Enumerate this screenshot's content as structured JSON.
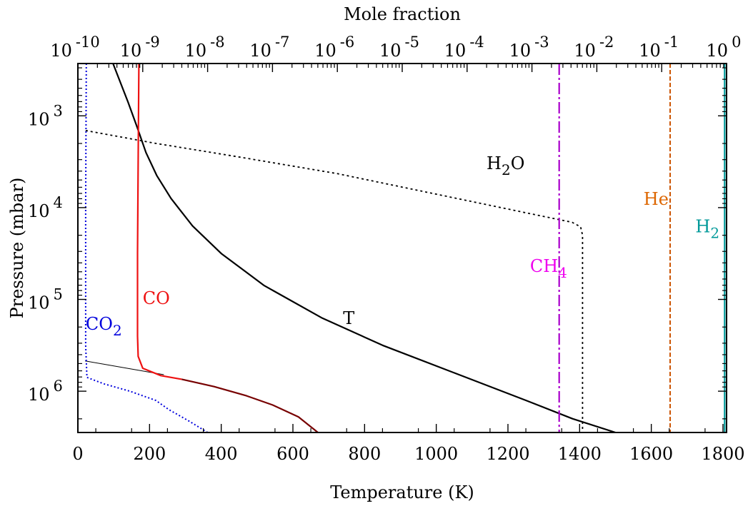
{
  "chart_data": {
    "type": "line",
    "xlabel_bottom": "Temperature (K)",
    "xlabel_top": "Mole fraction",
    "ylabel": "Pressure (mbar)",
    "x_bottom": {
      "scale": "linear",
      "lim": [
        0,
        1810
      ],
      "ticks": [
        0,
        200,
        400,
        600,
        800,
        1000,
        1200,
        1400,
        1600,
        1800
      ],
      "tick_labels": [
        "0",
        "200",
        "400",
        "600",
        "800",
        "1000",
        "1200",
        "1400",
        "1600",
        "1800"
      ]
    },
    "x_top": {
      "scale": "log",
      "lim_exp": [
        -10,
        0
      ],
      "tick_exps": [
        -10,
        -9,
        -8,
        -7,
        -6,
        -5,
        -4,
        -3,
        -2,
        -1,
        0
      ],
      "tick_exp_labels": [
        "-10",
        "-9",
        "-8",
        "-7",
        "-6",
        "-5",
        "-4",
        "-3",
        "-2",
        "-1",
        "0"
      ],
      "tick_base": "10"
    },
    "y": {
      "scale": "log",
      "inverted": true,
      "lim_exp": [
        2.43,
        6.45
      ],
      "tick_exps": [
        3,
        4,
        5,
        6
      ],
      "tick_exp_labels": [
        "3",
        "4",
        "5",
        "6"
      ],
      "tick_base": "10"
    },
    "grid": false,
    "legend": "none",
    "series": [
      {
        "name": "T",
        "axis": "temperature",
        "color": "#000000",
        "dash": "",
        "width": 2.2,
        "label_parts": [
          {
            "t": "T"
          }
        ],
        "label_at": [
          740,
          5.27
        ],
        "label_color": "#000000",
        "points": [
          [
            98,
            2.43
          ],
          [
            115,
            2.6
          ],
          [
            140,
            2.85
          ],
          [
            165,
            3.12
          ],
          [
            190,
            3.4
          ],
          [
            220,
            3.65
          ],
          [
            260,
            3.9
          ],
          [
            320,
            4.2
          ],
          [
            400,
            4.5
          ],
          [
            520,
            4.85
          ],
          [
            680,
            5.2
          ],
          [
            850,
            5.5
          ],
          [
            1050,
            5.8
          ],
          [
            1250,
            6.1
          ],
          [
            1380,
            6.3
          ],
          [
            1500,
            6.45
          ]
        ]
      },
      {
        "name": "T extension",
        "axis": "temperature",
        "color": "#000000",
        "dash": "",
        "width": 1.0,
        "points": [
          [
            20,
            5.67
          ],
          [
            240,
            5.82
          ]
        ]
      },
      {
        "name": "H2O",
        "axis": "mole_fraction",
        "color": "#000000",
        "dash": "3,4",
        "width": 1.8,
        "label_parts": [
          {
            "t": "H"
          },
          {
            "t": "2",
            "sub": true
          },
          {
            "t": "O"
          }
        ],
        "label_at": [
          -3.7,
          3.58
        ],
        "label_color": "#000000",
        "points": [
          [
            -9.88,
            3.16
          ],
          [
            -8.8,
            3.3
          ],
          [
            -7.5,
            3.45
          ],
          [
            -6.0,
            3.63
          ],
          [
            -4.5,
            3.85
          ],
          [
            -3.0,
            4.07
          ],
          [
            -2.38,
            4.16
          ],
          [
            -2.25,
            4.21
          ],
          [
            -2.22,
            4.3
          ],
          [
            -2.22,
            6.45
          ]
        ]
      },
      {
        "name": "CH4",
        "axis": "mole_fraction",
        "color": "#aa00cc",
        "dash": "16,4,3,4",
        "width": 2.2,
        "label_parts": [
          {
            "t": "CH"
          },
          {
            "t": "4",
            "sub": true
          }
        ],
        "label_at": [
          -3.03,
          4.7
        ],
        "label_color": "#ee00ee",
        "points": [
          [
            -2.58,
            2.43
          ],
          [
            -2.58,
            6.45
          ]
        ]
      },
      {
        "name": "He",
        "axis": "mole_fraction",
        "color": "#cc5500",
        "dash": "6,3",
        "width": 2.0,
        "label_parts": [
          {
            "t": "He"
          }
        ],
        "label_at": [
          -1.28,
          3.97
        ],
        "label_color": "#dd6600",
        "points": [
          [
            -0.87,
            2.43
          ],
          [
            -0.87,
            6.45
          ]
        ]
      },
      {
        "name": "H2",
        "axis": "mole_fraction",
        "color": "#009999",
        "dash": "",
        "width": 2.2,
        "label_parts": [
          {
            "t": "H"
          },
          {
            "t": "2",
            "sub": true
          }
        ],
        "label_at": [
          -0.48,
          4.27
        ],
        "label_color": "#009999",
        "points": [
          [
            -0.03,
            2.43
          ],
          [
            -0.03,
            6.45
          ]
        ]
      },
      {
        "name": "CO",
        "axis": "mole_fraction",
        "color": "#ee1111",
        "dash": "",
        "width": 2.2,
        "label_parts": [
          {
            "t": "CO"
          }
        ],
        "label_at": [
          -9.0,
          5.05
        ],
        "label_color": "#ee1111",
        "points": [
          [
            -9.06,
            2.43
          ],
          [
            -9.07,
            3.5
          ],
          [
            -9.08,
            4.5
          ],
          [
            -9.08,
            5.4
          ],
          [
            -9.07,
            5.62
          ],
          [
            -9.0,
            5.75
          ],
          [
            -8.72,
            5.83
          ],
          [
            -8.4,
            5.87
          ]
        ]
      },
      {
        "name": "CO dark",
        "axis": "mole_fraction",
        "color": "#770000",
        "dash": "",
        "width": 2.2,
        "points": [
          [
            -8.4,
            5.87
          ],
          [
            -7.9,
            5.95
          ],
          [
            -7.4,
            6.05
          ],
          [
            -7.0,
            6.15
          ],
          [
            -6.6,
            6.28
          ],
          [
            -6.3,
            6.45
          ]
        ]
      },
      {
        "name": "CO2",
        "axis": "mole_fraction",
        "color": "#0000dd",
        "dash": "2,3",
        "width": 2.0,
        "label_parts": [
          {
            "t": "CO"
          },
          {
            "t": "2",
            "sub": true
          }
        ],
        "label_at": [
          -9.88,
          5.33
        ],
        "label_color": "#0000dd",
        "points": [
          [
            -9.87,
            2.43
          ],
          [
            -9.88,
            4.0
          ],
          [
            -9.88,
            5.5
          ],
          [
            -9.86,
            5.85
          ],
          [
            -9.6,
            5.92
          ],
          [
            -9.2,
            6.0
          ],
          [
            -8.8,
            6.1
          ],
          [
            -8.6,
            6.2
          ],
          [
            -8.3,
            6.32
          ],
          [
            -8.0,
            6.45
          ]
        ]
      }
    ]
  }
}
